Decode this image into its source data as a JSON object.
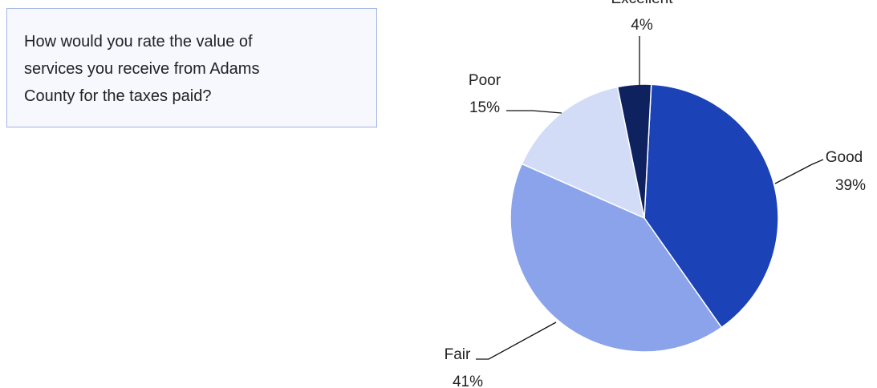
{
  "question_lines": [
    "How would you rate the value of",
    "services you receive from Adams",
    "County for the taxes paid?"
  ],
  "chart_data": {
    "type": "pie",
    "categories": [
      "Good",
      "Fair",
      "Poor",
      "Excellent"
    ],
    "values": [
      39,
      41,
      15,
      4
    ],
    "value_labels": [
      "39%",
      "41%",
      "15%",
      "4%"
    ],
    "colors": [
      "#1b42b6",
      "#8aa3ea",
      "#d3dcf7",
      "#0d225e"
    ]
  }
}
